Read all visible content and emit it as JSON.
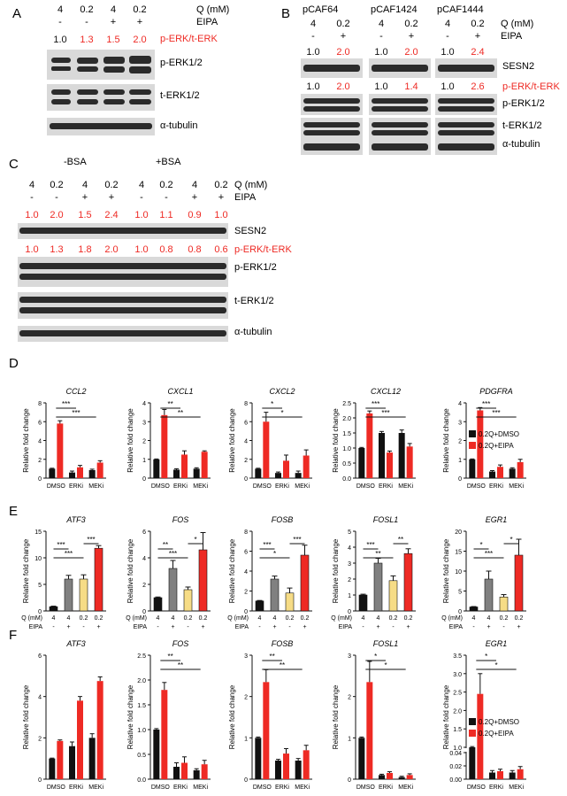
{
  "panels": {
    "A": {
      "letter": "A",
      "q_values": [
        "4",
        "0.2",
        "4",
        "0.2"
      ],
      "eipa_values": [
        "-",
        "-",
        "+",
        "+"
      ],
      "q_label": "Q (mM)",
      "eipa_label": "EIPA",
      "ratios": [
        "1.0",
        "1.3",
        "1.5",
        "2.0"
      ],
      "ratio_label": "p-ERK/t-ERK",
      "rows": [
        "p-ERK1/2",
        "t-ERK1/2",
        "α-tubulin"
      ]
    },
    "B": {
      "letter": "B",
      "groups": [
        "pCAF64",
        "pCAF1424",
        "pCAF1444"
      ],
      "q_values": [
        "4",
        "0.2"
      ],
      "eipa_values": [
        "-",
        "+"
      ],
      "q_label": "Q (mM)",
      "eipa_label": "EIPA",
      "sesn2_ratios": [
        [
          "1.0",
          "2.0"
        ],
        [
          "1.0",
          "2.0"
        ],
        [
          "1.0",
          "2.4"
        ]
      ],
      "erk_ratios": [
        [
          "1.0",
          "2.0"
        ],
        [
          "1.0",
          "1.4"
        ],
        [
          "1.0",
          "2.6"
        ]
      ],
      "rows": [
        "SESN2",
        "p-ERK/t-ERK",
        "p-ERK1/2",
        "t-ERK1/2",
        "α-tubulin"
      ]
    },
    "C": {
      "letter": "C",
      "groups": [
        "-BSA",
        "+BSA"
      ],
      "q_values": [
        "4",
        "0.2",
        "4",
        "0.2",
        "4",
        "0.2",
        "4",
        "0.2"
      ],
      "eipa_values": [
        "-",
        "-",
        "+",
        "+",
        "-",
        "-",
        "+",
        "+"
      ],
      "q_label": "Q (mM)",
      "eipa_label": "EIPA",
      "sesn2_ratios": [
        "1.0",
        "2.0",
        "1.5",
        "2.4",
        "1.0",
        "1.1",
        "0.9",
        "1.0"
      ],
      "erk_ratios": [
        "1.0",
        "1.3",
        "1.8",
        "2.0",
        "1.0",
        "0.8",
        "0.8",
        "0.6"
      ],
      "rows": [
        "SESN2",
        "p-ERK/t-ERK",
        "p-ERK1/2",
        "t-ERK1/2",
        "α-tubulin"
      ]
    },
    "D": {
      "letter": "D"
    },
    "E": {
      "letter": "E"
    },
    "F": {
      "letter": "F"
    }
  },
  "colors": {
    "black": "#111111",
    "red": "#ee2a24",
    "gray": "#808080",
    "yellow": "#f6dc86"
  },
  "common": {
    "ylabel": "Relative fold change",
    "legend": [
      "0.2Q+DMSO",
      "0.2Q+EIPA"
    ],
    "cats_DEF": [
      "DMSO",
      "ERKi",
      "MEKi"
    ],
    "e_q_label": "Q (mM)",
    "e_eipa_label": "EIPA",
    "e_q": [
      "4",
      "4",
      "0.2",
      "0.2"
    ],
    "e_eipa": [
      "-",
      "+",
      "-",
      "+"
    ]
  },
  "chart_data": [
    {
      "panel": "D",
      "type": "bar",
      "title": "CCL2",
      "categories": [
        "DMSO",
        "ERKi",
        "MEKi"
      ],
      "ylim": [
        0,
        8
      ],
      "yticks": [
        0,
        2,
        4,
        6,
        8
      ],
      "series": [
        {
          "name": "0.2Q+DMSO",
          "values": [
            1.0,
            0.6,
            0.85
          ],
          "err": [
            0.05,
            0.15,
            0.1
          ]
        },
        {
          "name": "0.2Q+EIPA",
          "values": [
            5.8,
            1.15,
            1.65
          ],
          "err": [
            0.3,
            0.2,
            0.2
          ]
        }
      ],
      "sig": [
        {
          "from": 0,
          "to": 1,
          "label": "***"
        },
        {
          "from": 0,
          "to": 2,
          "label": "***"
        }
      ]
    },
    {
      "panel": "D",
      "type": "bar",
      "title": "CXCL1",
      "categories": [
        "DMSO",
        "ERKi",
        "MEKi"
      ],
      "ylim": [
        0,
        4
      ],
      "yticks": [
        0,
        1,
        2,
        3,
        4
      ],
      "series": [
        {
          "name": "0.2Q+DMSO",
          "values": [
            1.0,
            0.45,
            0.5
          ],
          "err": [
            0.02,
            0.05,
            0.05
          ]
        },
        {
          "name": "0.2Q+EIPA",
          "values": [
            3.35,
            1.25,
            1.4
          ],
          "err": [
            0.3,
            0.2,
            0.05
          ]
        }
      ],
      "sig": [
        {
          "from": 0,
          "to": 1,
          "label": "**"
        },
        {
          "from": 0,
          "to": 2,
          "label": "**"
        }
      ]
    },
    {
      "panel": "D",
      "type": "bar",
      "title": "CXCL2",
      "categories": [
        "DMSO",
        "ERKi",
        "MEKi"
      ],
      "ylim": [
        0,
        8
      ],
      "yticks": [
        0,
        2,
        4,
        6,
        8
      ],
      "series": [
        {
          "name": "0.2Q+DMSO",
          "values": [
            1.0,
            0.55,
            0.55
          ],
          "err": [
            0.05,
            0.1,
            0.2
          ]
        },
        {
          "name": "0.2Q+EIPA",
          "values": [
            6.0,
            1.85,
            2.4
          ],
          "err": [
            1.0,
            0.6,
            0.6
          ]
        }
      ],
      "sig": [
        {
          "from": 0,
          "to": 1,
          "label": "*"
        },
        {
          "from": 0,
          "to": 2,
          "label": "*"
        }
      ]
    },
    {
      "panel": "D",
      "type": "bar",
      "title": "CXCL12",
      "categories": [
        "DMSO",
        "ERKi",
        "MEKi"
      ],
      "ylim": [
        0,
        2.5
      ],
      "yticks": [
        0,
        0.5,
        1.0,
        1.5,
        2.0,
        2.5
      ],
      "series": [
        {
          "name": "0.2Q+DMSO",
          "values": [
            1.0,
            1.5,
            1.5
          ],
          "err": [
            0.02,
            0.05,
            0.1
          ]
        },
        {
          "name": "0.2Q+EIPA",
          "values": [
            2.15,
            0.85,
            1.05
          ],
          "err": [
            0.08,
            0.05,
            0.1
          ]
        }
      ],
      "sig": [
        {
          "from": 0,
          "to": 1,
          "label": "***"
        },
        {
          "from": 0,
          "to": 2,
          "label": "***"
        }
      ]
    },
    {
      "panel": "D",
      "type": "bar",
      "title": "PDGFRA",
      "categories": [
        "DMSO",
        "ERKi",
        "MEKi"
      ],
      "ylim": [
        0,
        4
      ],
      "yticks": [
        0,
        1,
        2,
        3,
        4
      ],
      "series": [
        {
          "name": "0.2Q+DMSO",
          "values": [
            1.0,
            0.35,
            0.5
          ],
          "err": [
            0.02,
            0.05,
            0.05
          ]
        },
        {
          "name": "0.2Q+EIPA",
          "values": [
            3.6,
            0.6,
            0.85
          ],
          "err": [
            0.15,
            0.1,
            0.15
          ]
        }
      ],
      "sig": [
        {
          "from": 0,
          "to": 1,
          "label": "***"
        },
        {
          "from": 0,
          "to": 2,
          "label": "***"
        }
      ]
    },
    {
      "panel": "E",
      "type": "bar",
      "title": "ATF3",
      "categories": [
        "4",
        "4",
        "0.2",
        "0.2"
      ],
      "ylim": [
        0,
        15
      ],
      "yticks": [
        0,
        5,
        10,
        15
      ],
      "values": [
        0.8,
        6.0,
        6.0,
        11.8
      ],
      "err": [
        0.1,
        0.7,
        0.8,
        0.5
      ],
      "sig": [
        {
          "from": 0,
          "to": 1,
          "label": "***"
        },
        {
          "from": 0,
          "to": 2,
          "label": "***"
        },
        {
          "from": 2,
          "to": 3,
          "label": "***"
        }
      ]
    },
    {
      "panel": "E",
      "type": "bar",
      "title": "FOS",
      "categories": [
        "4",
        "4",
        "0.2",
        "0.2"
      ],
      "ylim": [
        0,
        6
      ],
      "yticks": [
        0,
        2,
        4,
        6
      ],
      "values": [
        1.0,
        3.2,
        1.6,
        4.6
      ],
      "err": [
        0.05,
        0.6,
        0.2,
        1.3
      ],
      "sig": [
        {
          "from": 0,
          "to": 1,
          "label": "**"
        },
        {
          "from": 0,
          "to": 2,
          "label": "***"
        },
        {
          "from": 2,
          "to": 3,
          "label": "*"
        }
      ]
    },
    {
      "panel": "E",
      "type": "bar",
      "title": "FOSB",
      "categories": [
        "4",
        "4",
        "0.2",
        "0.2"
      ],
      "ylim": [
        0,
        8
      ],
      "yticks": [
        0,
        2,
        4,
        6,
        8
      ],
      "values": [
        1.0,
        3.2,
        1.8,
        5.6
      ],
      "err": [
        0.05,
        0.3,
        0.5,
        1.0
      ],
      "sig": [
        {
          "from": 0,
          "to": 1,
          "label": "***"
        },
        {
          "from": 0,
          "to": 2,
          "label": "*"
        },
        {
          "from": 2,
          "to": 3,
          "label": "***"
        }
      ]
    },
    {
      "panel": "E",
      "type": "bar",
      "title": "FOSL1",
      "categories": [
        "4",
        "4",
        "0.2",
        "0.2"
      ],
      "ylim": [
        0,
        5
      ],
      "yticks": [
        0,
        1,
        2,
        3,
        4,
        5
      ],
      "values": [
        1.0,
        3.0,
        1.9,
        3.6
      ],
      "err": [
        0.05,
        0.3,
        0.3,
        0.3
      ],
      "sig": [
        {
          "from": 0,
          "to": 1,
          "label": "***"
        },
        {
          "from": 0,
          "to": 2,
          "label": "**"
        },
        {
          "from": 2,
          "to": 3,
          "label": "**"
        }
      ]
    },
    {
      "panel": "E",
      "type": "bar",
      "title": "EGR1",
      "categories": [
        "4",
        "4",
        "0.2",
        "0.2"
      ],
      "ylim": [
        0,
        20
      ],
      "yticks": [
        0,
        5,
        10,
        15,
        20
      ],
      "values": [
        1.0,
        8.0,
        3.5,
        14.0
      ],
      "err": [
        0.1,
        2.0,
        0.6,
        4.0
      ],
      "sig": [
        {
          "from": 0,
          "to": 1,
          "label": "*"
        },
        {
          "from": 0,
          "to": 2,
          "label": "***"
        },
        {
          "from": 2,
          "to": 3,
          "label": "*"
        }
      ]
    },
    {
      "panel": "F",
      "type": "bar",
      "title": "ATF3",
      "categories": [
        "DMSO",
        "ERKi",
        "MEKi"
      ],
      "ylim": [
        0,
        6
      ],
      "yticks": [
        0,
        2,
        4,
        6
      ],
      "series": [
        {
          "name": "0.2Q+DMSO",
          "values": [
            1.0,
            1.6,
            2.0
          ],
          "err": [
            0.02,
            0.2,
            0.2
          ]
        },
        {
          "name": "0.2Q+EIPA",
          "values": [
            1.85,
            3.8,
            4.75
          ],
          "err": [
            0.05,
            0.2,
            0.2
          ]
        }
      ],
      "sig": []
    },
    {
      "panel": "F",
      "type": "bar",
      "title": "FOS",
      "categories": [
        "DMSO",
        "ERKi",
        "MEKi"
      ],
      "ylim": [
        0,
        2.5
      ],
      "yticks": [
        0,
        0.5,
        1.0,
        1.5,
        2.0,
        2.5
      ],
      "series": [
        {
          "name": "0.2Q+DMSO",
          "values": [
            1.0,
            0.25,
            0.18
          ],
          "err": [
            0.02,
            0.08,
            0.03
          ]
        },
        {
          "name": "0.2Q+EIPA",
          "values": [
            1.8,
            0.33,
            0.3
          ],
          "err": [
            0.15,
            0.12,
            0.08
          ]
        }
      ],
      "sig": [
        {
          "from": 0,
          "to": 1,
          "label": "**"
        },
        {
          "from": 0,
          "to": 2,
          "label": "**"
        }
      ]
    },
    {
      "panel": "F",
      "type": "bar",
      "title": "FOSB",
      "categories": [
        "DMSO",
        "ERKi",
        "MEKi"
      ],
      "ylim": [
        0,
        3
      ],
      "yticks": [
        0,
        1,
        2,
        3
      ],
      "series": [
        {
          "name": "0.2Q+DMSO",
          "values": [
            1.0,
            0.45,
            0.45
          ],
          "err": [
            0.02,
            0.03,
            0.05
          ]
        },
        {
          "name": "0.2Q+EIPA",
          "values": [
            2.35,
            0.62,
            0.7
          ],
          "err": [
            0.3,
            0.12,
            0.12
          ]
        }
      ],
      "sig": [
        {
          "from": 0,
          "to": 1,
          "label": "**"
        },
        {
          "from": 0,
          "to": 2,
          "label": "**"
        }
      ]
    },
    {
      "panel": "F",
      "type": "bar",
      "title": "FOSL1",
      "categories": [
        "DMSO",
        "ERKi",
        "MEKi"
      ],
      "ylim": [
        0,
        3
      ],
      "yticks": [
        0,
        1,
        2,
        3
      ],
      "series": [
        {
          "name": "0.2Q+DMSO",
          "values": [
            1.0,
            0.1,
            0.05
          ],
          "err": [
            0.02,
            0.02,
            0.02
          ]
        },
        {
          "name": "0.2Q+EIPA",
          "values": [
            2.35,
            0.15,
            0.1
          ],
          "err": [
            0.5,
            0.03,
            0.03
          ]
        }
      ],
      "sig": [
        {
          "from": 0,
          "to": 1,
          "label": "*"
        },
        {
          "from": 0,
          "to": 2,
          "label": "*"
        }
      ]
    },
    {
      "panel": "F",
      "type": "bar",
      "title": "EGR1",
      "categories": [
        "DMSO",
        "ERKi",
        "MEKi"
      ],
      "ylim": [
        0,
        3.5
      ],
      "broken_axis": {
        "lower": [
          0,
          0.04
        ],
        "upper": [
          1.0,
          3.5
        ]
      },
      "yticks": [
        "0.00",
        "0.02",
        "0.04",
        "1.0",
        "1.5",
        "2.0",
        "2.5",
        "3.0",
        "3.5"
      ],
      "series": [
        {
          "name": "0.2Q+DMSO",
          "values": [
            1.0,
            0.01,
            0.01
          ],
          "err": [
            0.02,
            0.003,
            0.003
          ]
        },
        {
          "name": "0.2Q+EIPA",
          "values": [
            2.45,
            0.012,
            0.015
          ],
          "err": [
            0.55,
            0.003,
            0.004
          ]
        }
      ],
      "sig": [
        {
          "from": 0,
          "to": 1,
          "label": "*"
        },
        {
          "from": 0,
          "to": 2,
          "label": "*"
        }
      ]
    }
  ]
}
